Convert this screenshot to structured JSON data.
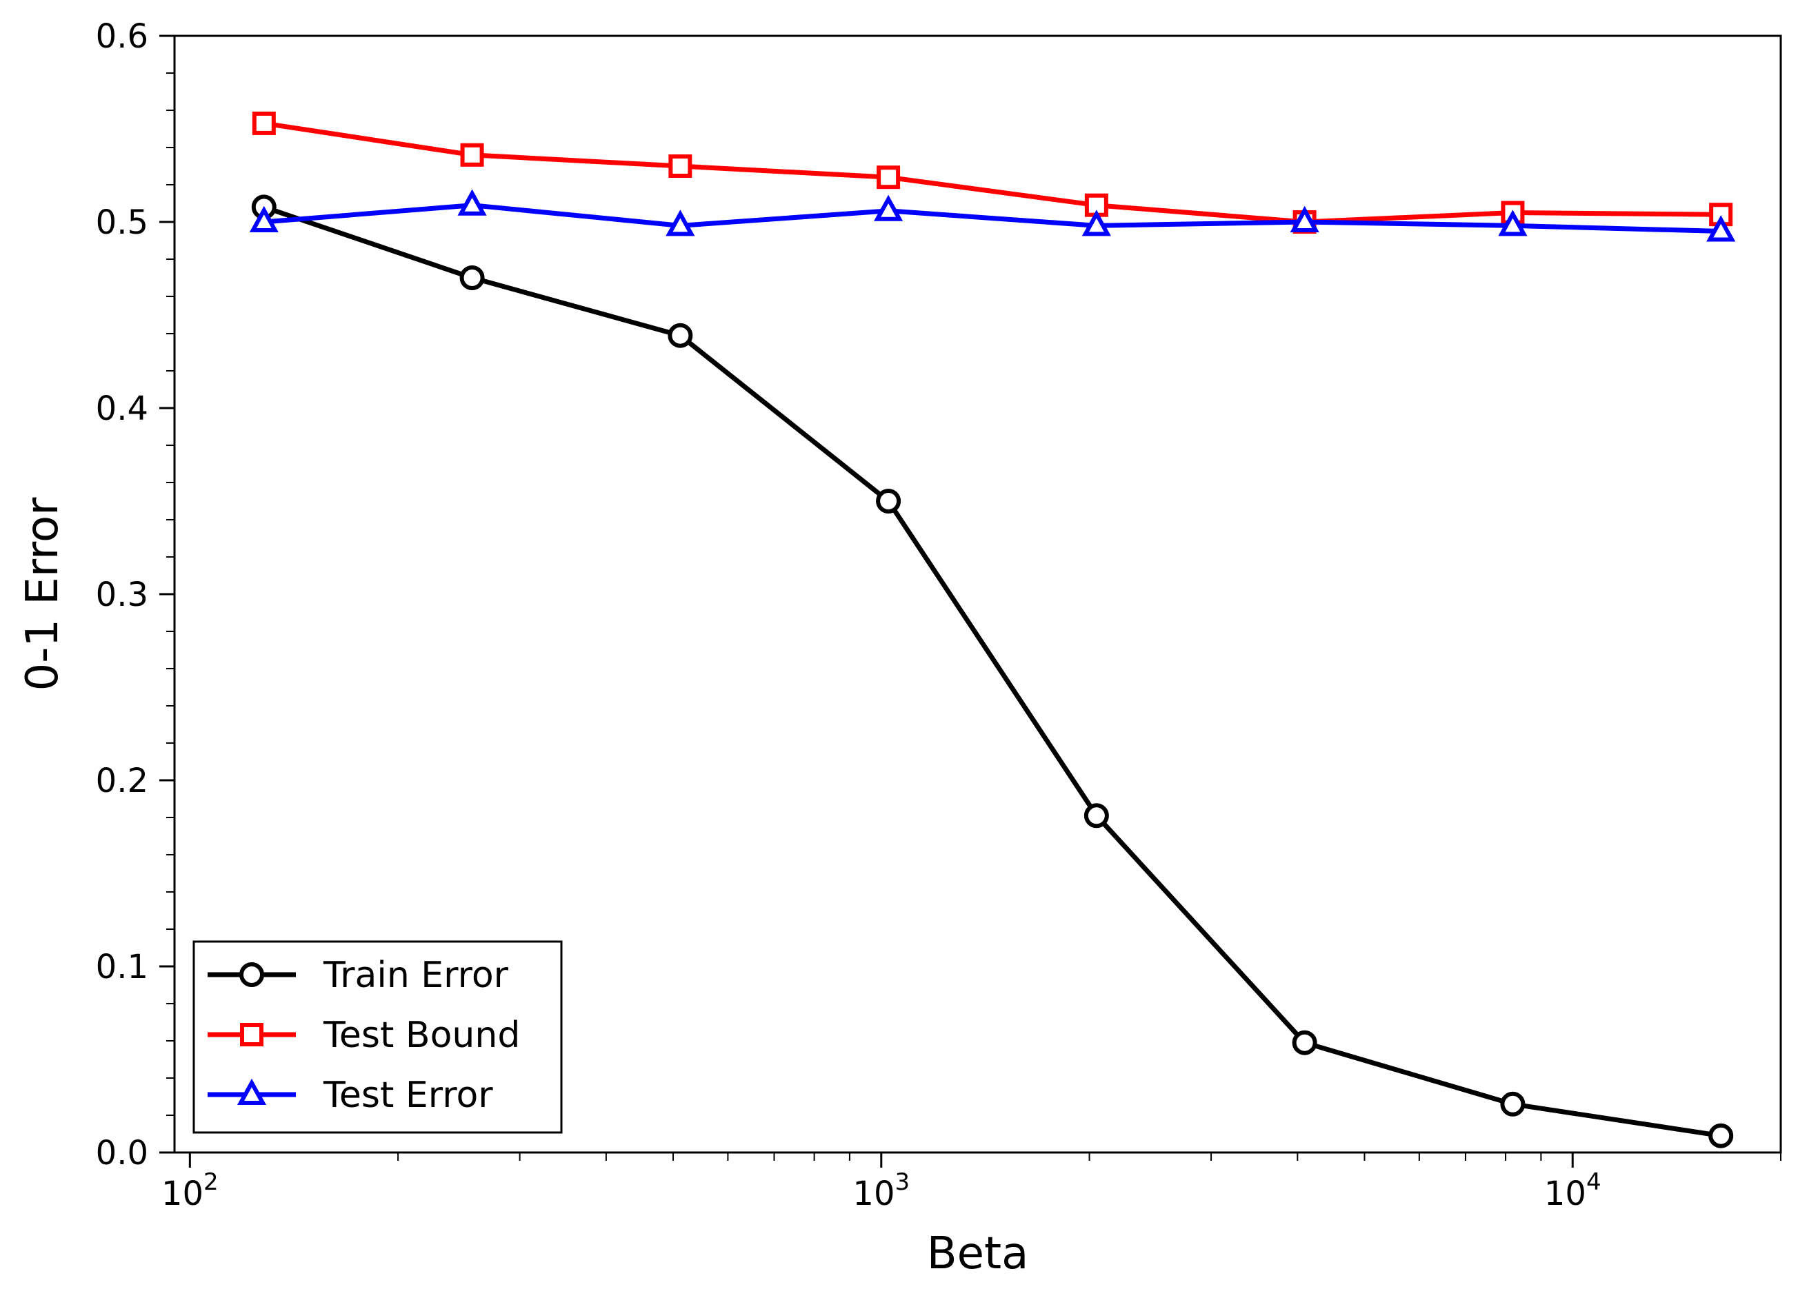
{
  "chart_data": {
    "type": "line",
    "title": "",
    "xlabel": "Beta",
    "ylabel": "0-1 Error",
    "x_scale": "log",
    "xlim": [
      95,
      20000
    ],
    "ylim": [
      0.0,
      0.6
    ],
    "x": [
      128,
      256,
      512,
      1024,
      2048,
      4096,
      8192,
      16384
    ],
    "x_ticks": [
      {
        "value": 100,
        "base": "10",
        "exp": "2"
      },
      {
        "value": 1000,
        "base": "10",
        "exp": "3"
      },
      {
        "value": 10000,
        "base": "10",
        "exp": "4"
      }
    ],
    "y_ticks": [
      "0.0",
      "0.1",
      "0.2",
      "0.3",
      "0.4",
      "0.5",
      "0.6"
    ],
    "grid": false,
    "legend_position": "bottom-left",
    "series": [
      {
        "name": "Train Error",
        "color": "#000000",
        "marker": "circle",
        "values": [
          0.508,
          0.47,
          0.439,
          0.35,
          0.181,
          0.059,
          0.026,
          0.009
        ]
      },
      {
        "name": "Test Bound",
        "color": "#ff0000",
        "marker": "square",
        "values": [
          0.553,
          0.536,
          0.53,
          0.524,
          0.509,
          0.5,
          0.505,
          0.504
        ]
      },
      {
        "name": "Test Error",
        "color": "#0000ff",
        "marker": "triangle",
        "values": [
          0.5,
          0.509,
          0.498,
          0.506,
          0.498,
          0.5,
          0.498,
          0.495
        ]
      }
    ]
  }
}
